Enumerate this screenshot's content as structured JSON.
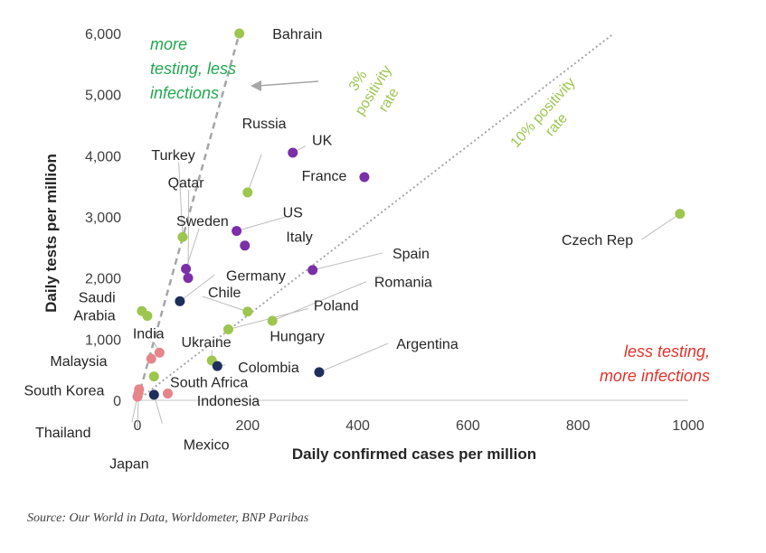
{
  "colors": {
    "green": "#9dc64f",
    "purple": "#7b2fa8",
    "navy": "#1f2f5c",
    "pink": "#e5858a",
    "ref_line": "#a6a6a6",
    "ann_green": "#22a84f",
    "ann_red": "#e0332a"
  },
  "source": "Source: Our World in Data, Worldometer, BNP Paribas",
  "chart_data": {
    "type": "scatter",
    "title": "",
    "xlabel": "Daily confirmed cases per million",
    "ylabel": "Daily tests per million",
    "xlim": [
      0,
      1000
    ],
    "ylim": [
      0,
      6000
    ],
    "xticks": [
      "0",
      "200",
      "400",
      "600",
      "800",
      "1000"
    ],
    "yticks": [
      "0",
      "1,000",
      "2,000",
      "3,000",
      "4,000",
      "5,000",
      "6,000"
    ],
    "grid": false,
    "points": [
      {
        "label": "Bahrain",
        "x": 185,
        "y": 6000,
        "color": "green"
      },
      {
        "label": "UK",
        "x": 282,
        "y": 4050,
        "color": "purple"
      },
      {
        "label": "France",
        "x": 412,
        "y": 3650,
        "color": "purple"
      },
      {
        "label": "Russia",
        "x": 200,
        "y": 3400,
        "color": "green"
      },
      {
        "label": "Czech Rep",
        "x": 985,
        "y": 3050,
        "color": "green"
      },
      {
        "label": "US",
        "x": 180,
        "y": 2770,
        "color": "purple"
      },
      {
        "label": "Turkey",
        "x": 82,
        "y": 2670,
        "color": "green"
      },
      {
        "label": "Italy",
        "x": 195,
        "y": 2530,
        "color": "purple"
      },
      {
        "label": "Sweden",
        "x": 88,
        "y": 2150,
        "color": "purple"
      },
      {
        "label": "Qatar",
        "x": 92,
        "y": 2000,
        "color": "purple"
      },
      {
        "label": "Spain",
        "x": 318,
        "y": 2130,
        "color": "purple"
      },
      {
        "label": "Germany",
        "x": 77,
        "y": 1620,
        "color": "navy"
      },
      {
        "label": "Chile",
        "x": 200,
        "y": 1450,
        "color": "green"
      },
      {
        "label": "Romania",
        "x": 245,
        "y": 1300,
        "color": "green"
      },
      {
        "label": "Saudi Arabia",
        "x": 8,
        "y": 1460,
        "color": "green"
      },
      {
        "label": "Saudi Arabia",
        "x": 18,
        "y": 1380,
        "color": "green"
      },
      {
        "label": "Poland",
        "x": 165,
        "y": 1160,
        "color": "green"
      },
      {
        "label": "India",
        "x": 40,
        "y": 780,
        "color": "pink"
      },
      {
        "label": "Malaysia",
        "x": 25,
        "y": 680,
        "color": "pink"
      },
      {
        "label": "Ukraine",
        "x": 135,
        "y": 650,
        "color": "green"
      },
      {
        "label": "Colombia",
        "x": 145,
        "y": 560,
        "color": "navy"
      },
      {
        "label": "Argentina",
        "x": 330,
        "y": 460,
        "color": "navy"
      },
      {
        "label": "South Africa",
        "x": 30,
        "y": 390,
        "color": "green"
      },
      {
        "label": "South Korea",
        "x": 3,
        "y": 180,
        "color": "pink"
      },
      {
        "label": "Thailand",
        "x": 0,
        "y": 60,
        "color": "pink"
      },
      {
        "label": "Japan",
        "x": 2,
        "y": 120,
        "color": "pink"
      },
      {
        "label": "Mexico",
        "x": 30,
        "y": 90,
        "color": "navy"
      },
      {
        "label": "Indonesia",
        "x": 55,
        "y": 110,
        "color": "pink"
      }
    ],
    "labels": [
      {
        "text": "Bahrain",
        "tx": 245,
        "ty": 6000,
        "anchor": "start",
        "leader": false
      },
      {
        "text": "UK",
        "tx": 317,
        "ty": 4260,
        "anchor": "start",
        "leader": true,
        "lx": 305,
        "ly": 4160
      },
      {
        "text": "Russia",
        "tx": 230,
        "ty": 4540,
        "anchor": "middle",
        "leader": true,
        "lx": 225,
        "ly": 4020
      },
      {
        "text": "France",
        "tx": 380,
        "ty": 3680,
        "anchor": "end",
        "leader": false
      },
      {
        "text": "Czech Rep",
        "tx": 900,
        "ty": 2630,
        "anchor": "end",
        "leader": true,
        "lx": 915,
        "ly": 2630
      },
      {
        "text": "US",
        "tx": 282,
        "ty": 3080,
        "anchor": "middle",
        "leader": true,
        "lx": 270,
        "ly": 3000
      },
      {
        "text": "Italy",
        "tx": 270,
        "ty": 2680,
        "anchor": "start",
        "leader": false
      },
      {
        "text": "Turkey",
        "tx": 65,
        "ty": 4020,
        "anchor": "middle",
        "leader": true,
        "lx": 75,
        "ly": 3890
      },
      {
        "text": "Qatar",
        "tx": 88,
        "ty": 3570,
        "anchor": "middle",
        "leader": true,
        "lx": 93,
        "ly": 3440
      },
      {
        "text": "Sweden",
        "tx": 118,
        "ty": 2940,
        "anchor": "middle",
        "leader": true,
        "lx": 112,
        "ly": 2810
      },
      {
        "text": "Germany",
        "tx": 215,
        "ty": 2050,
        "anchor": "middle",
        "leader": true,
        "lx": 140,
        "ly": 2050
      },
      {
        "text": "Spain",
        "tx": 463,
        "ty": 2410,
        "anchor": "start",
        "leader": true,
        "lx": 445,
        "ly": 2410
      },
      {
        "text": "Chile",
        "tx": 128,
        "ty": 1770,
        "anchor": "start",
        "leader": true,
        "lx": 118,
        "ly": 1700
      },
      {
        "text": "Romania",
        "tx": 430,
        "ty": 1940,
        "anchor": "start",
        "leader": true,
        "lx": 415,
        "ly": 1940
      },
      {
        "text": "Poland",
        "tx": 320,
        "ty": 1560,
        "anchor": "start",
        "leader": true,
        "lx": 310,
        "ly": 1500
      },
      {
        "text": "Saudi Arabia",
        "tx": -40,
        "ty": 1600,
        "anchor": "end",
        "leader": false,
        "multiline": true
      },
      {
        "text": "Hungary",
        "tx": 290,
        "ty": 1060,
        "anchor": "middle",
        "leader": true,
        "lx": 190,
        "ly": 1100
      },
      {
        "text": "India",
        "tx": 20,
        "ty": 1100,
        "anchor": "middle",
        "leader": true,
        "lx": 30,
        "ly": 950
      },
      {
        "text": "Malaysia",
        "tx": -55,
        "ty": 650,
        "anchor": "end",
        "leader": true,
        "lx": 20,
        "ly": 680
      },
      {
        "text": "Ukraine",
        "tx": 125,
        "ty": 960,
        "anchor": "middle",
        "leader": true,
        "lx": 135,
        "ly": 820
      },
      {
        "text": "Colombia",
        "tx": 238,
        "ty": 550,
        "anchor": "middle",
        "leader": true,
        "lx": 160,
        "ly": 580
      },
      {
        "text": "Argentina",
        "tx": 470,
        "ty": 930,
        "anchor": "start",
        "leader": true,
        "lx": 455,
        "ly": 930
      },
      {
        "text": "South Africa",
        "tx": 130,
        "ty": 300,
        "anchor": "middle",
        "leader": false
      },
      {
        "text": "South Korea",
        "tx": -60,
        "ty": 170,
        "anchor": "end",
        "leader": true,
        "lx": 0,
        "ly": 180
      },
      {
        "text": "Indonesia",
        "tx": 165,
        "ty": 0,
        "anchor": "middle",
        "leader": false
      },
      {
        "text": "Thailand",
        "tx": -135,
        "ty": -520,
        "anchor": "middle",
        "leader": true,
        "lx": -10,
        "ly": -360
      },
      {
        "text": "Mexico",
        "tx": 125,
        "ty": -720,
        "anchor": "middle",
        "leader": true,
        "lx": 45,
        "ly": -380
      },
      {
        "text": "Japan",
        "tx": -15,
        "ty": -1030,
        "anchor": "middle",
        "leader": true,
        "lx": 0,
        "ly": -450
      }
    ],
    "reference_lines": [
      {
        "label": "3% positivity rate",
        "label_lines": [
          "3%",
          "positivity",
          "rate"
        ],
        "x1": 0,
        "y1": 0,
        "x2": 185,
        "y2": 6000,
        "style": "dashed"
      },
      {
        "label": "10% positivity rate",
        "label_lines": [
          "10% positivity",
          "rate"
        ],
        "x1": 0,
        "y1": 0,
        "x2": 865,
        "y2": 6000,
        "style": "dotted"
      }
    ],
    "annotations": [
      {
        "text_lines": [
          "more",
          "testing, less",
          "infections"
        ],
        "color": "ann_green"
      },
      {
        "text_lines": [
          "less testing,",
          "more infections"
        ],
        "color": "ann_red"
      }
    ]
  }
}
